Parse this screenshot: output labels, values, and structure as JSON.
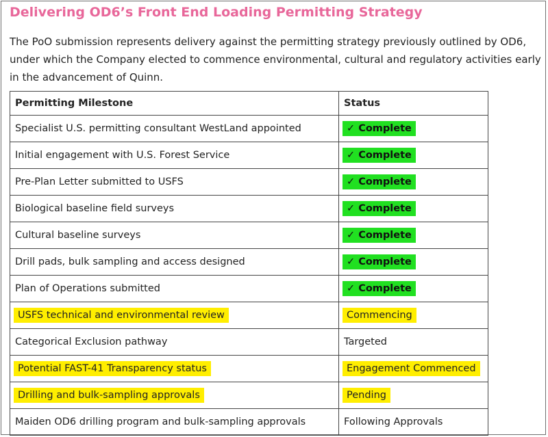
{
  "title": "Delivering OD6’s Front End Loading Permitting Strategy",
  "intro": "The PoO submission represents delivery against the permitting strategy previously outlined by OD6, under which the Company elected to commence environmental, cultural and regulatory activities early in the advancement of Quinn.",
  "table": {
    "headers": {
      "milestone": "Permitting Milestone",
      "status": "Status"
    },
    "rows": [
      {
        "milestone": "Specialist U.S. permitting consultant WestLand appointed",
        "status": "✓ Complete"
      },
      {
        "milestone": "Initial engagement with U.S. Forest Service",
        "status": "✓ Complete"
      },
      {
        "milestone": "Pre-Plan Letter submitted to USFS",
        "status": "✓ Complete"
      },
      {
        "milestone": "Biological baseline field surveys",
        "status": "✓ Complete"
      },
      {
        "milestone": "Cultural baseline surveys",
        "status": "✓ Complete"
      },
      {
        "milestone": "Drill pads, bulk sampling and access designed",
        "status": "✓ Complete"
      },
      {
        "milestone": "Plan of Operations submitted",
        "status": "✓ Complete"
      },
      {
        "milestone": "USFS technical and environmental review",
        "status": "Commencing"
      },
      {
        "milestone": "Categorical Exclusion pathway",
        "status": "Targeted"
      },
      {
        "milestone": "Potential FAST-41 Transparency status",
        "status": "Engagement Commenced"
      },
      {
        "milestone": "Drilling and bulk-sampling approvals",
        "status": "Pending"
      },
      {
        "milestone": "Maiden OD6 drilling program and bulk-sampling approvals",
        "status": "Following Approvals"
      }
    ]
  },
  "colors": {
    "title": "#e8679a",
    "highlight_green": "#21e021",
    "highlight_yellow": "#ffee00"
  }
}
